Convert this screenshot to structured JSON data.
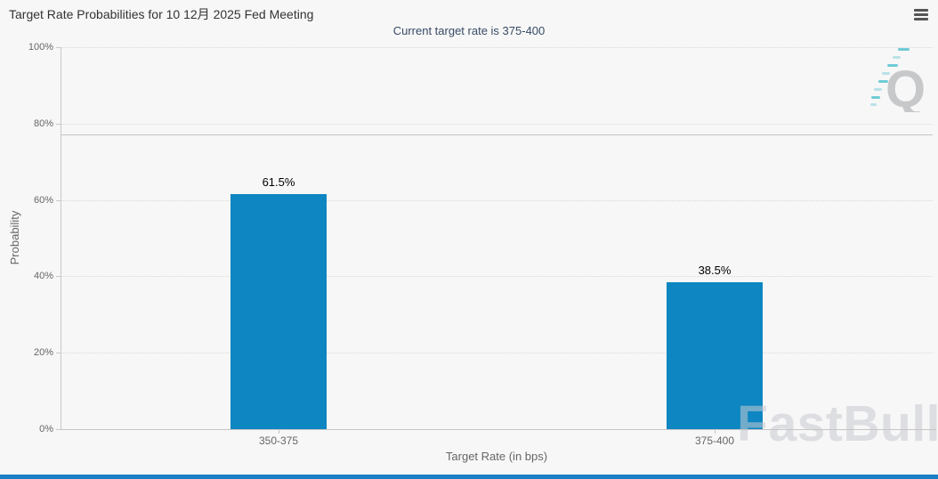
{
  "chart_data": {
    "type": "bar",
    "title": "Target Rate Probabilities for 10 12月 2025 Fed Meeting",
    "subtitle": "Current target rate is 375-400",
    "categories": [
      "350-375",
      "375-400"
    ],
    "values": [
      61.5,
      38.5
    ],
    "value_labels": [
      "61.5%",
      "38.5%"
    ],
    "xlabel": "Target Rate (in bps)",
    "ylabel": "Probability",
    "ylim": [
      0,
      100
    ],
    "ytick_step": 20,
    "ytick_labels": [
      "0%",
      "20%",
      "40%",
      "60%",
      "80%",
      "100%"
    ],
    "grid": "horizontal-dotted",
    "legend": "none",
    "reference_line_value": 77.2,
    "bar_color": "#0d86c1"
  },
  "menu": {
    "icon_label": "chart context menu"
  },
  "watermarks": {
    "brand": "FastBull",
    "logo_letter": "Q"
  },
  "colors": {
    "background": "#f7f7f7",
    "bar": "#0d86c1",
    "title": "#333333",
    "subtitle": "#374a66",
    "axis_text": "#666666",
    "gridline": "#d9d9d9",
    "axis_line": "#c8c8c8",
    "reference_line": "#c4c4c4",
    "accent_bottom_bar": "#1a80c4",
    "watermark_gray": "#dfe1e4",
    "q_logo_gray": "#c6c8ca",
    "q_logo_teal": "#6fcbd5"
  }
}
